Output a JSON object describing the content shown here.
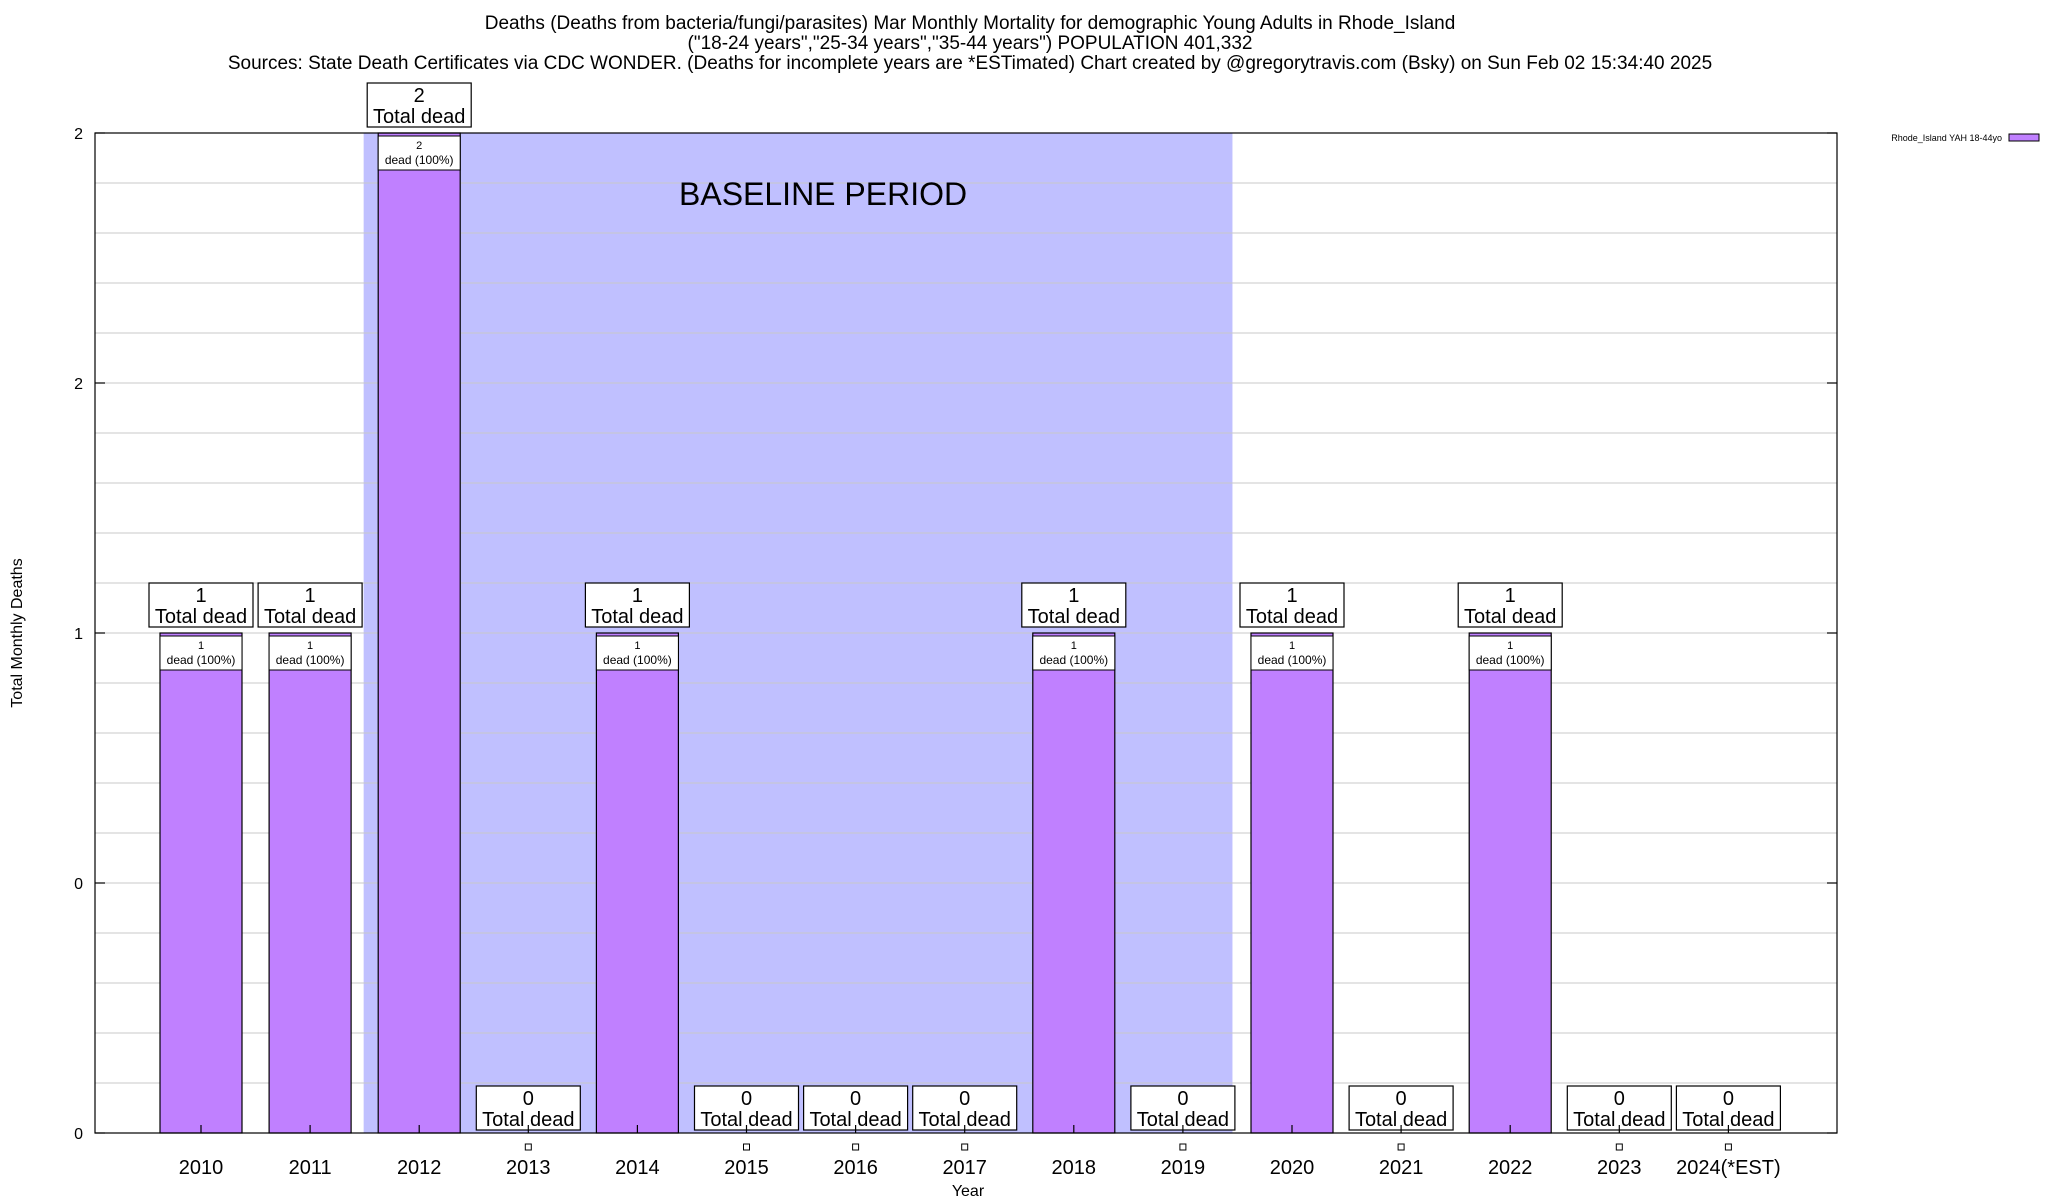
{
  "title_line_1": "Deaths (Deaths from bacteria/fungi/parasites) Mar Monthly Mortality for demographic Young Adults in Rhode_Island",
  "title_line_2": "(\"18-24 years\",\"25-34 years\",\"35-44 years\") POPULATION 401,332",
  "title_line_3": "Sources: State Death Certificates via CDC WONDER. (Deaths for incomplete years are *ESTimated)                Chart created by @gregorytravis.com (Bsky) on Sun Feb 02 15:34:40 2025",
  "colors": {
    "bar": "#c080ff",
    "baseline": "#c0c0ff"
  },
  "chart_data": {
    "type": "bar",
    "title": "Deaths (Deaths from bacteria/fungi/parasites) Mar Monthly Mortality for demographic Young Adults in Rhode_Island",
    "xlabel": "Year",
    "ylabel": "Total Monthly Deaths",
    "categories": [
      "2010",
      "2011",
      "2012",
      "2013",
      "2014",
      "2015",
      "2016",
      "2017",
      "2018",
      "2019",
      "2020",
      "2021",
      "2022",
      "2023",
      "2024(*EST)"
    ],
    "series": [
      {
        "name": "Rhode_Island YAH 18-44yo",
        "values": [
          1,
          1,
          2,
          0,
          1,
          0,
          0,
          0,
          1,
          0,
          1,
          0,
          1,
          0,
          0
        ]
      }
    ],
    "ylim": [
      0,
      2
    ],
    "y_tick_labels": [
      "0",
      "0",
      "1",
      "2",
      "2"
    ],
    "grid": true,
    "legend_position": "top-right",
    "baseline_label": "BASELINE PERIOD",
    "baseline_range": [
      "2012",
      "2019"
    ],
    "total_label_suffix": "Total dead",
    "segment_label_suffix": "dead (100%)"
  }
}
